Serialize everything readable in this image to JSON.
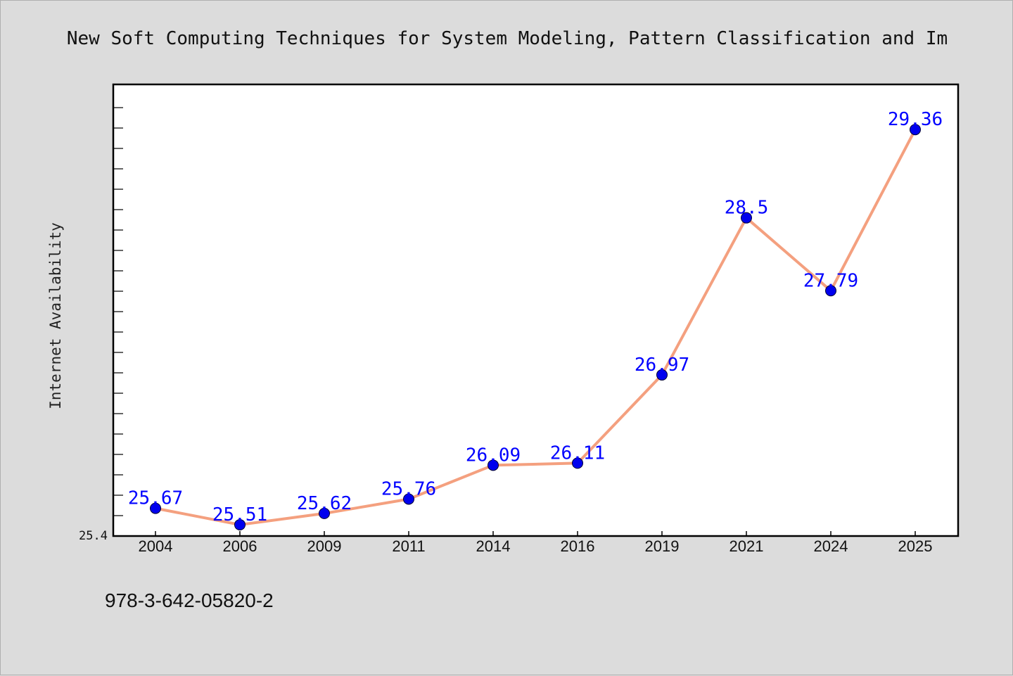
{
  "colors": {
    "background": "#dcdcdc",
    "plot_background": "#ffffff",
    "line": "#f4a07f",
    "marker": "#0000ee",
    "data_label": "#0000ff"
  },
  "footer": {
    "isbn": "978-3-642-05820-2"
  },
  "chart_data": {
    "type": "line",
    "title": "New Soft Computing Techniques for System Modeling, Pattern Classification and Im",
    "xlabel": "",
    "ylabel": "Internet Availability",
    "categories": [
      "2004",
      "2006",
      "2009",
      "2011",
      "2014",
      "2016",
      "2019",
      "2021",
      "2024",
      "2025"
    ],
    "series": [
      {
        "values": [
          25.67,
          25.51,
          25.62,
          25.76,
          26.09,
          26.11,
          26.97,
          28.5,
          27.79,
          29.36
        ]
      }
    ],
    "data_labels": [
      "25.67",
      "25.51",
      "25.62",
      "25.76",
      "26.09",
      "26.11",
      "26.97",
      "28.5",
      "27.79",
      "29.36"
    ],
    "ytick_labels": [
      "25.4"
    ],
    "ylim": [
      25.4,
      29.8
    ],
    "grid": false,
    "legend": "none"
  }
}
